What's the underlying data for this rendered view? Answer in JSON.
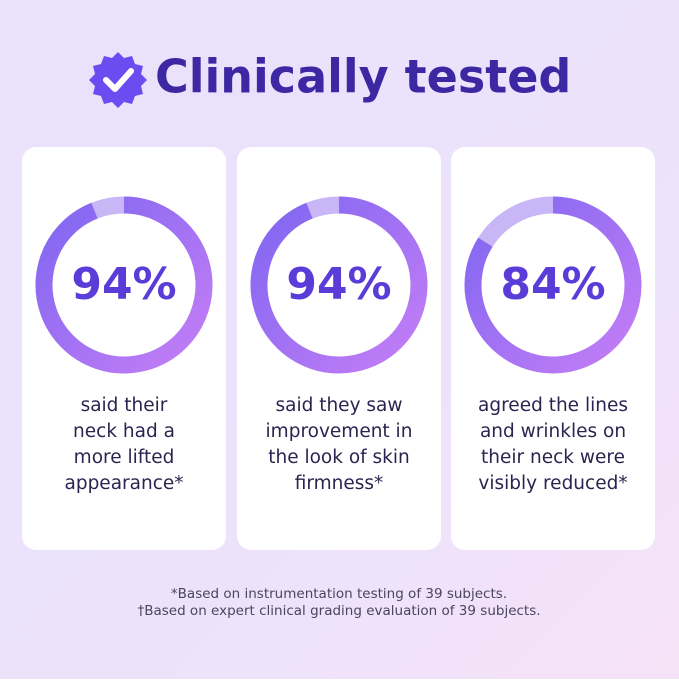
{
  "header": {
    "title": "Clinically tested"
  },
  "chart_data": [
    {
      "type": "donut",
      "values": [
        94
      ],
      "value_labels": [
        "94%"
      ],
      "ylim": [
        0,
        100
      ],
      "caption": [
        "said their",
        "neck had a",
        "more lifted",
        "appearance*"
      ]
    },
    {
      "type": "donut",
      "values": [
        94
      ],
      "value_labels": [
        "94%"
      ],
      "ylim": [
        0,
        100
      ],
      "caption": [
        "said they saw",
        "improvement in",
        "the look of skin",
        "firmness*"
      ]
    },
    {
      "type": "donut",
      "values": [
        84
      ],
      "value_labels": [
        "84%"
      ],
      "ylim": [
        0,
        100
      ],
      "caption": [
        "agreed the lines",
        "and wrinkles on",
        "their neck were",
        "visibly reduced*"
      ]
    }
  ],
  "footnotes": [
    "*Based on instrumentation testing of 39 subjects.",
    "†Based on expert clinical grading evaluation of 39 subjects."
  ]
}
